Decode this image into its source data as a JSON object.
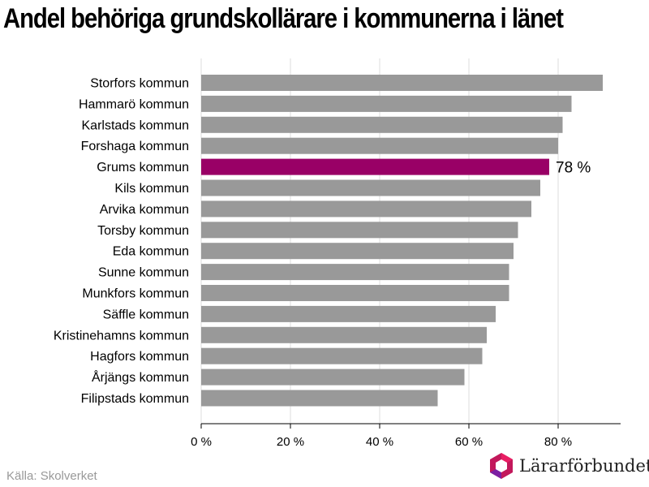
{
  "title": "Andel behöriga grundskollärare i kommunerna i länet",
  "source": "Källa: Skolverket",
  "logo_text": "Lärarförbundet",
  "colors": {
    "bar": "#999999",
    "highlight": "#990066",
    "grid": "#dddddd",
    "axis": "#000000"
  },
  "chart_data": {
    "type": "bar",
    "orientation": "horizontal",
    "categories": [
      "Storfors kommun",
      "Hammarö kommun",
      "Karlstads kommun",
      "Forshaga kommun",
      "Grums kommun",
      "Kils kommun",
      "Arvika kommun",
      "Torsby kommun",
      "Eda kommun",
      "Sunne kommun",
      "Munkfors kommun",
      "Säffle kommun",
      "Kristinehamns kommun",
      "Hagfors kommun",
      "Årjängs kommun",
      "Filipstads kommun"
    ],
    "values": [
      90,
      83,
      81,
      80,
      78,
      76,
      74,
      71,
      70,
      69,
      69,
      66,
      64,
      63,
      59,
      53
    ],
    "highlight": {
      "category": "Grums kommun",
      "label": "78 %"
    },
    "xlim": [
      0,
      94
    ],
    "xticks": [
      0,
      20,
      40,
      60,
      80
    ],
    "xtick_labels": [
      "0 %",
      "20 %",
      "40 %",
      "60 %",
      "80 %"
    ],
    "grid": true
  }
}
